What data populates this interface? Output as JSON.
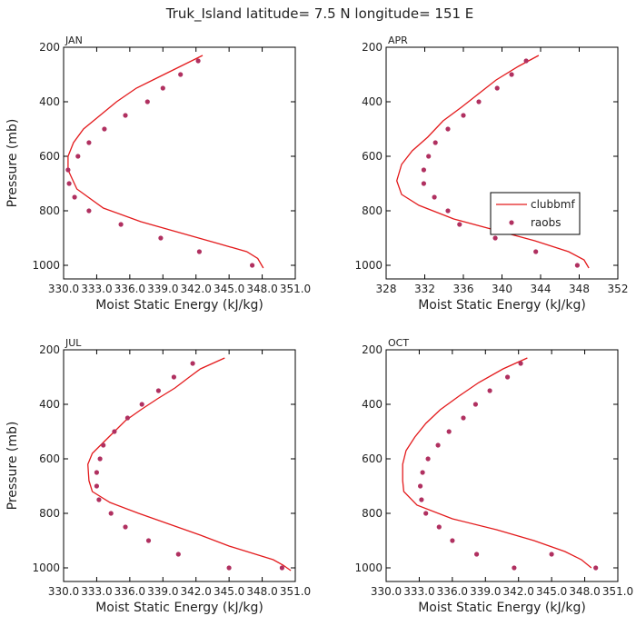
{
  "figure": {
    "title": "Truk_Island  latitude= 7.5 N longitude= 151 E"
  },
  "colors": {
    "model_line": "#e31a1c",
    "obs_marker": "#b03060",
    "axes": "#000000"
  },
  "legend": {
    "panel": 1,
    "entries": [
      {
        "label": "clubbmf",
        "kind": "line"
      },
      {
        "label": "raobs",
        "kind": "marker"
      }
    ]
  },
  "chart_data": [
    {
      "type": "line",
      "panel_label": "JAN",
      "xlabel": "Moist Static Energy (kJ/kg)",
      "ylabel": "Pressure (mb)",
      "xlim": [
        330.0,
        351.0
      ],
      "ylim": [
        1050,
        200
      ],
      "xticks": [
        330.0,
        333.0,
        336.0,
        339.0,
        342.0,
        345.0,
        348.0,
        351.0
      ],
      "xtick_labels": [
        "330.0",
        "333.0",
        "336.0",
        "339.0",
        "342.0",
        "345.0",
        "348.0",
        "351.0"
      ],
      "yticks": [
        200,
        400,
        600,
        800,
        1000
      ],
      "ytick_labels": [
        "200",
        "400",
        "600",
        "800",
        "1000"
      ],
      "series": [
        {
          "name": "clubbmf",
          "style": "line",
          "x": [
            342.6,
            340.6,
            338.6,
            336.6,
            334.8,
            333.3,
            331.8,
            330.9,
            330.4,
            330.4,
            331.2,
            333.6,
            337.0,
            340.5,
            344.0,
            346.6,
            347.6,
            348.1
          ],
          "y": [
            230,
            270,
            310,
            350,
            400,
            450,
            500,
            550,
            600,
            650,
            720,
            790,
            840,
            880,
            920,
            950,
            975,
            1010
          ]
        },
        {
          "name": "raobs",
          "style": "marker",
          "x": [
            342.2,
            340.6,
            339.0,
            337.6,
            335.6,
            333.7,
            332.3,
            331.3,
            330.4,
            330.5,
            331.0,
            332.3,
            335.2,
            338.8,
            342.3,
            347.1
          ],
          "y": [
            250,
            300,
            350,
            400,
            450,
            500,
            550,
            600,
            650,
            700,
            750,
            800,
            850,
            900,
            950,
            1000
          ]
        }
      ]
    },
    {
      "type": "line",
      "panel_label": "APR",
      "xlabel": "Moist Static Energy (kJ/kg)",
      "ylabel": "",
      "xlim": [
        328,
        352
      ],
      "ylim": [
        1050,
        200
      ],
      "xticks": [
        328,
        332,
        336,
        340,
        344,
        348,
        352
      ],
      "xtick_labels": [
        "328",
        "332",
        "336",
        "340",
        "344",
        "348",
        "352"
      ],
      "yticks": [
        200,
        400,
        600,
        800,
        1000
      ],
      "ytick_labels": [
        "200",
        "400",
        "600",
        "800",
        "1000"
      ],
      "series": [
        {
          "name": "clubbmf",
          "style": "line",
          "x": [
            343.8,
            341.7,
            339.4,
            337.6,
            335.8,
            333.9,
            332.3,
            330.7,
            329.6,
            329.1,
            329.6,
            331.4,
            335.0,
            339.2,
            343.4,
            346.9,
            348.5,
            349.0
          ],
          "y": [
            230,
            270,
            320,
            370,
            420,
            470,
            530,
            580,
            630,
            690,
            740,
            780,
            830,
            870,
            910,
            950,
            980,
            1010
          ]
        },
        {
          "name": "raobs",
          "style": "marker",
          "x": [
            342.5,
            341.0,
            339.5,
            337.6,
            336.0,
            334.4,
            333.1,
            332.4,
            331.9,
            331.9,
            333.0,
            334.4,
            335.6,
            339.3,
            343.5,
            347.8
          ],
          "y": [
            250,
            300,
            350,
            400,
            450,
            500,
            550,
            600,
            650,
            700,
            750,
            800,
            850,
            900,
            950,
            1000
          ]
        }
      ]
    },
    {
      "type": "line",
      "panel_label": "JUL",
      "xlabel": "Moist Static Energy (kJ/kg)",
      "ylabel": "Pressure (mb)",
      "xlim": [
        330.0,
        351.0
      ],
      "ylim": [
        1050,
        200
      ],
      "xticks": [
        330.0,
        333.0,
        336.0,
        339.0,
        342.0,
        345.0,
        348.0,
        351.0
      ],
      "xtick_labels": [
        "330.0",
        "333.0",
        "336.0",
        "339.0",
        "342.0",
        "345.0",
        "348.0",
        "351.0"
      ],
      "yticks": [
        200,
        400,
        600,
        800,
        1000
      ],
      "ytick_labels": [
        "200",
        "400",
        "600",
        "800",
        "1000"
      ],
      "series": [
        {
          "name": "clubbmf",
          "style": "line",
          "x": [
            344.6,
            342.4,
            341.4,
            340.1,
            338.5,
            337.0,
            335.6,
            334.6,
            333.6,
            332.6,
            332.2,
            332.3,
            332.6,
            334.2,
            336.8,
            339.6,
            342.4,
            345.0,
            347.4,
            349.0,
            349.9,
            350.6
          ],
          "y": [
            230,
            270,
            300,
            340,
            380,
            420,
            460,
            500,
            540,
            580,
            620,
            680,
            720,
            760,
            800,
            840,
            880,
            920,
            950,
            970,
            990,
            1010
          ]
        },
        {
          "name": "raobs",
          "style": "marker",
          "x": [
            341.7,
            340.0,
            338.6,
            337.1,
            335.8,
            334.6,
            333.6,
            333.3,
            333.0,
            333.0,
            333.2,
            334.3,
            335.6,
            337.7,
            340.4,
            345.0,
            349.8
          ],
          "y": [
            250,
            300,
            350,
            400,
            450,
            500,
            550,
            600,
            650,
            700,
            750,
            800,
            850,
            900,
            950,
            1000,
            1000
          ]
        }
      ]
    },
    {
      "type": "line",
      "panel_label": "OCT",
      "xlabel": "Moist Static Energy (kJ/kg)",
      "ylabel": "",
      "xlim": [
        330.0,
        351.0
      ],
      "ylim": [
        1050,
        200
      ],
      "xticks": [
        330.0,
        333.0,
        336.0,
        339.0,
        342.0,
        345.0,
        348.0,
        351.0
      ],
      "xtick_labels": [
        "330.0",
        "333.0",
        "336.0",
        "339.0",
        "342.0",
        "345.0",
        "348.0",
        "351.0"
      ],
      "yticks": [
        200,
        400,
        600,
        800,
        1000
      ],
      "ytick_labels": [
        "200",
        "400",
        "600",
        "800",
        "1000"
      ],
      "series": [
        {
          "name": "clubbmf",
          "style": "line",
          "x": [
            342.8,
            340.6,
            338.4,
            336.6,
            334.9,
            333.6,
            332.6,
            331.8,
            331.5,
            331.5,
            331.6,
            332.8,
            336.0,
            340.0,
            343.4,
            346.2,
            347.7,
            348.6
          ],
          "y": [
            230,
            270,
            320,
            370,
            420,
            470,
            520,
            570,
            620,
            680,
            720,
            770,
            820,
            860,
            900,
            940,
            970,
            1000
          ]
        },
        {
          "name": "raobs",
          "style": "marker",
          "x": [
            342.2,
            341.0,
            339.4,
            338.1,
            337.0,
            335.7,
            334.7,
            333.8,
            333.3,
            333.1,
            333.2,
            333.6,
            334.8,
            336.0,
            338.2,
            341.6,
            345.0,
            349.0
          ],
          "y": [
            250,
            300,
            350,
            400,
            450,
            500,
            550,
            600,
            650,
            700,
            750,
            800,
            850,
            900,
            950,
            1000,
            950,
            1000
          ]
        }
      ]
    }
  ]
}
